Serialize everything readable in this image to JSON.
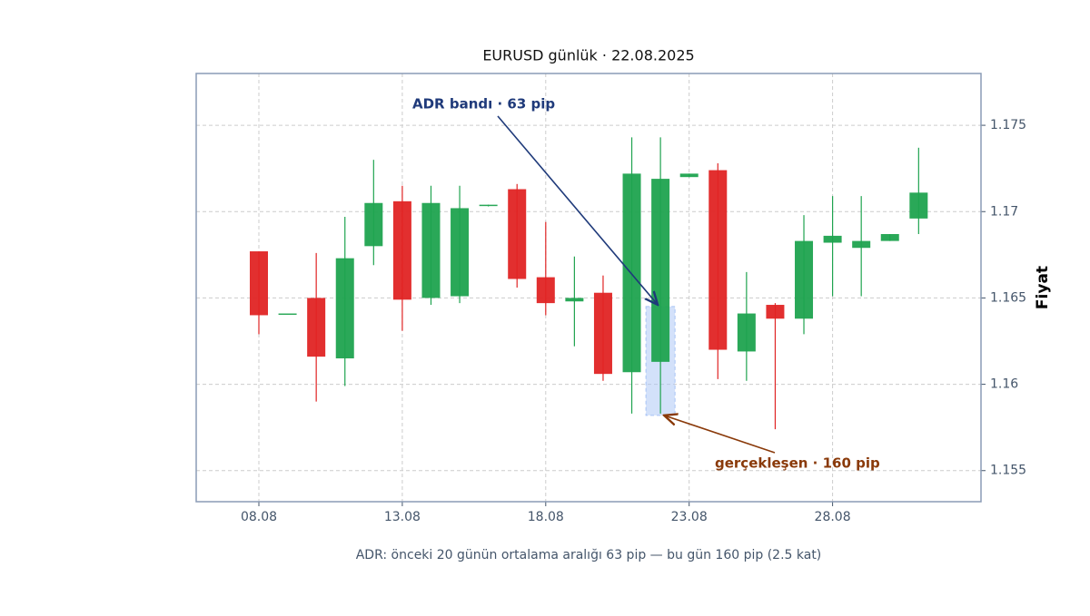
{
  "chart_data": {
    "type": "candlestick",
    "title": "EURUSD günlük · 22.08.2025",
    "y_label": "Fiyat",
    "caption": "ADR: önceki 20 günün ortalama aralığı 63 pip — bu gün 160 pip (2.5 kat)",
    "x": [
      "08.08",
      "09.08",
      "10.08",
      "11.08",
      "12.08",
      "13.08",
      "14.08",
      "15.08",
      "16.08",
      "17.08",
      "18.08",
      "19.08",
      "20.08",
      "21.08",
      "22.08",
      "23.08",
      "24.08",
      "25.08",
      "26.08",
      "27.08",
      "28.08",
      "29.08",
      "30.08",
      "31.08"
    ],
    "xticks": [
      "08.08",
      "13.08",
      "18.08",
      "23.08",
      "28.08"
    ],
    "open": [
      1.1677,
      1.1641,
      1.165,
      1.1615,
      1.168,
      1.1706,
      1.165,
      1.1651,
      1.1704,
      1.1713,
      1.1662,
      1.1648,
      1.1653,
      1.1607,
      1.1613,
      1.172,
      1.1724,
      1.1619,
      1.1646,
      1.1638,
      1.1682,
      1.1679,
      1.1683,
      1.1696
    ],
    "high": [
      1.1677,
      1.1641,
      1.1676,
      1.1697,
      1.173,
      1.1715,
      1.1715,
      1.1715,
      1.1704,
      1.1716,
      1.1694,
      1.1674,
      1.1663,
      1.1743,
      1.1743,
      1.1722,
      1.1728,
      1.1665,
      1.1647,
      1.1698,
      1.1709,
      1.1709,
      1.1687,
      1.1737
    ],
    "low": [
      1.1629,
      1.1641,
      1.159,
      1.1599,
      1.1669,
      1.1631,
      1.1646,
      1.1647,
      1.1703,
      1.1656,
      1.164,
      1.1622,
      1.1602,
      1.1583,
      1.1583,
      1.172,
      1.1603,
      1.1602,
      1.1574,
      1.1629,
      1.1651,
      1.1651,
      1.1683,
      1.1687
    ],
    "close": [
      1.164,
      1.1641,
      1.1616,
      1.1673,
      1.1705,
      1.1649,
      1.1705,
      1.1702,
      1.1704,
      1.1661,
      1.1647,
      1.165,
      1.1606,
      1.1722,
      1.1719,
      1.1722,
      1.162,
      1.1641,
      1.1638,
      1.1683,
      1.1686,
      1.1683,
      1.1687,
      1.1711
    ],
    "up_color": "#1fa34f",
    "down_color": "#e02424",
    "ylim": [
      1.1532,
      1.178
    ],
    "yticks": [
      1.155,
      1.16,
      1.165,
      1.17,
      1.175
    ],
    "grid": true,
    "adr_band": {
      "x": "22.08",
      "low": 1.1582,
      "high": 1.1645,
      "color": "#a8c4f5"
    },
    "annotations": [
      {
        "text": "ADR bandı · 63 pip",
        "color": "#1f3a7a"
      },
      {
        "text": "gerçekleşen · 160 pip",
        "color": "#8a3a0a"
      }
    ]
  }
}
